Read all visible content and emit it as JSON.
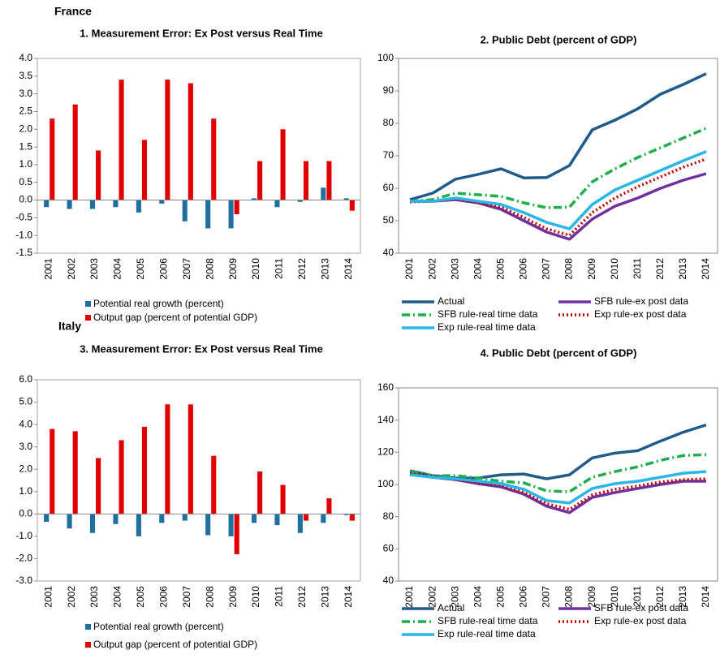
{
  "headings": [
    "France",
    "Italy"
  ],
  "chart_data": [
    {
      "type": "bar",
      "title": "1. Measurement Error: Ex Post versus Real Time",
      "categories": [
        "2001",
        "2002",
        "2003",
        "2004",
        "2005",
        "2006",
        "2007",
        "2008",
        "2009",
        "2010",
        "2011",
        "2012",
        "2013",
        "2014"
      ],
      "series": [
        {
          "name": "Potential real growth (percent)",
          "color": "#1f6fa0",
          "values": [
            -0.2,
            -0.25,
            -0.25,
            -0.2,
            -0.35,
            -0.1,
            -0.6,
            -0.8,
            -0.8,
            0.05,
            -0.2,
            -0.05,
            0.35,
            0.05
          ]
        },
        {
          "name": "Output gap (percent of potential GDP)",
          "color": "#e00000",
          "values": [
            2.3,
            2.7,
            1.4,
            3.4,
            1.7,
            3.4,
            3.3,
            2.3,
            -0.4,
            1.1,
            2.0,
            1.1,
            1.1,
            -0.3
          ]
        }
      ],
      "ylim": [
        -1.5,
        4.0
      ],
      "yticks": [
        -1.5,
        {
          "value": -1,
          "label": "-1.0"
        },
        -0.5,
        {
          "value": 0,
          "label": "0.0"
        },
        0.5,
        {
          "value": 1,
          "label": "1.0"
        },
        1.5,
        {
          "value": 2,
          "label": "2.0"
        },
        2.5,
        {
          "value": 3,
          "label": "3.0"
        },
        3.5,
        {
          "value": 4,
          "label": "4.0"
        }
      ]
    },
    {
      "type": "line",
      "title": "2. Public Debt (percent of GDP)",
      "categories": [
        "2001",
        "2002",
        "2003",
        "2004",
        "2005",
        "2006",
        "2007",
        "2008",
        "2009",
        "2010",
        "2011",
        "2012",
        "2013",
        "2014"
      ],
      "series": [
        {
          "name": "Actual",
          "color": "#1f5c8b",
          "style": "solid",
          "values": [
            56.5,
            58.5,
            62.8,
            64.3,
            66,
            63.2,
            63.3,
            67,
            78,
            81,
            84.5,
            89,
            92,
            95.3
          ]
        },
        {
          "name": "SFB rule-ex post data",
          "color": "#7030a0",
          "style": "solid",
          "values": [
            56,
            56,
            56.5,
            55.5,
            53.5,
            50,
            46.5,
            44.3,
            50.5,
            54.5,
            57,
            60,
            62.5,
            64.5
          ]
        },
        {
          "name": "SFB rule-real time data",
          "color": "#1fae4c",
          "style": "dashdot",
          "values": [
            56,
            56.5,
            58.5,
            58,
            57.5,
            55.5,
            54,
            54.2,
            62,
            66,
            69.5,
            72.5,
            75.5,
            78.5
          ]
        },
        {
          "name": "Exp rule-ex post data",
          "color": "#c00000",
          "style": "dotted",
          "values": [
            55.8,
            56,
            56.8,
            55.5,
            54.2,
            51,
            47.5,
            45.5,
            52.5,
            57,
            60.5,
            63.5,
            66.5,
            69
          ]
        },
        {
          "name": "Exp rule-real time data",
          "color": "#29b6e8",
          "style": "solid",
          "values": [
            56,
            56,
            57,
            56,
            55,
            52.5,
            49.5,
            47.5,
            55,
            59.5,
            62.5,
            65.5,
            68.5,
            71.3
          ]
        }
      ],
      "ylim": [
        40,
        100
      ],
      "yticks": [
        40,
        50,
        60,
        70,
        80,
        90,
        100
      ]
    },
    {
      "type": "bar",
      "title": "3. Measurement Error: Ex Post versus Real Time",
      "categories": [
        "2001",
        "2002",
        "2003",
        "2004",
        "2005",
        "2006",
        "2007",
        "2008",
        "2009",
        "2010",
        "2011",
        "2012",
        "2013",
        "2014"
      ],
      "series": [
        {
          "name": "Potential real growth (percent)",
          "color": "#1f6fa0",
          "values": [
            -0.35,
            -0.65,
            -0.85,
            -0.45,
            -1.0,
            -0.4,
            -0.3,
            -0.95,
            -1.0,
            -0.4,
            -0.5,
            -0.85,
            -0.4,
            -0.05
          ]
        },
        {
          "name": "Output gap (percent of potential GDP)",
          "color": "#e00000",
          "values": [
            3.8,
            3.7,
            2.5,
            3.3,
            3.9,
            4.9,
            4.9,
            2.6,
            -1.8,
            1.9,
            1.3,
            -0.3,
            0.7,
            -0.3
          ]
        }
      ],
      "ylim": [
        -3,
        6
      ],
      "yticks": [
        {
          "value": -3,
          "label": "-3.0"
        },
        {
          "value": -2,
          "label": "-2.0"
        },
        {
          "value": -1,
          "label": "-1.0"
        },
        {
          "value": 0,
          "label": "0.0"
        },
        {
          "value": 1,
          "label": "1.0"
        },
        {
          "value": 2,
          "label": "2.0"
        },
        {
          "value": 3,
          "label": "3.0"
        },
        {
          "value": 4,
          "label": "4.0"
        },
        {
          "value": 5,
          "label": "5.0"
        },
        {
          "value": 6,
          "label": "6.0"
        }
      ]
    },
    {
      "type": "line",
      "title": "4. Public Debt (percent of GDP)",
      "categories": [
        "2001",
        "2002",
        "2003",
        "2004",
        "2005",
        "2006",
        "2007",
        "2008",
        "2009",
        "2010",
        "2011",
        "2012",
        "2013",
        "2014"
      ],
      "series": [
        {
          "name": "Actual",
          "color": "#1f5c8b",
          "style": "solid",
          "values": [
            108.5,
            105.5,
            104,
            104,
            106,
            106.5,
            103.5,
            106,
            116.5,
            119.5,
            121,
            127,
            132.5,
            137
          ]
        },
        {
          "name": "SFB rule-ex post data",
          "color": "#7030a0",
          "style": "solid",
          "values": [
            106.5,
            104.5,
            103,
            100.5,
            98.5,
            94,
            86.5,
            82.5,
            92,
            95,
            97.5,
            100,
            102,
            102
          ]
        },
        {
          "name": "SFB rule-real time data",
          "color": "#1fae4c",
          "style": "dashdot",
          "values": [
            108,
            105.5,
            105.5,
            104,
            102,
            101,
            96,
            95.5,
            104.5,
            108,
            111,
            115,
            118,
            118.5
          ]
        },
        {
          "name": "Exp rule-ex post data",
          "color": "#c00000",
          "style": "dotted",
          "values": [
            107,
            105,
            103,
            101,
            99.5,
            95,
            88,
            84.5,
            93.5,
            97,
            99,
            101.5,
            103,
            103.5
          ]
        },
        {
          "name": "Exp rule-real time data",
          "color": "#29b6e8",
          "style": "solid",
          "values": [
            106,
            104.5,
            103.5,
            102,
            100.5,
            97,
            90,
            88.5,
            97.5,
            100.5,
            102,
            104.5,
            107,
            108
          ]
        }
      ],
      "ylim": [
        40,
        160
      ],
      "yticks": [
        40,
        60,
        80,
        100,
        120,
        140,
        160
      ]
    }
  ]
}
